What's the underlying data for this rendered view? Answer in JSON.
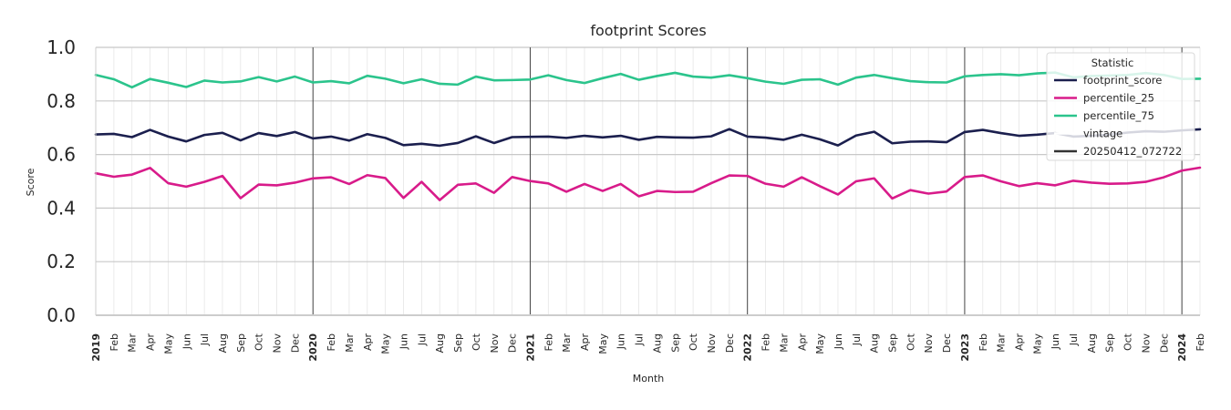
{
  "chart_data": {
    "type": "line",
    "title": "footprint Scores",
    "xlabel": "Month",
    "ylabel": "Score",
    "ylim": [
      0.0,
      1.0
    ],
    "yticks": [
      "0.0",
      "0.2",
      "0.4",
      "0.6",
      "0.8",
      "1.0"
    ],
    "x": [
      "2019-01",
      "2019-02",
      "2019-03",
      "2019-04",
      "2019-05",
      "2019-06",
      "2019-07",
      "2019-08",
      "2019-09",
      "2019-10",
      "2019-11",
      "2019-12",
      "2020-01",
      "2020-02",
      "2020-03",
      "2020-04",
      "2020-05",
      "2020-06",
      "2020-07",
      "2020-08",
      "2020-09",
      "2020-10",
      "2020-11",
      "2020-12",
      "2021-01",
      "2021-02",
      "2021-03",
      "2021-04",
      "2021-05",
      "2021-06",
      "2021-07",
      "2021-08",
      "2021-09",
      "2021-10",
      "2021-11",
      "2021-12",
      "2022-01",
      "2022-02",
      "2022-03",
      "2022-04",
      "2022-05",
      "2022-06",
      "2022-07",
      "2022-08",
      "2022-09",
      "2022-10",
      "2022-11",
      "2022-12",
      "2023-01",
      "2023-02",
      "2023-03",
      "2023-04",
      "2023-05",
      "2023-06",
      "2023-07",
      "2023-08",
      "2023-09",
      "2023-10",
      "2023-11",
      "2023-12",
      "2024-01",
      "2024-02"
    ],
    "xtick_labels": [
      "2019",
      "Feb",
      "Mar",
      "Apr",
      "May",
      "Jun",
      "Jul",
      "Aug",
      "Sep",
      "Oct",
      "Nov",
      "Dec",
      "2020",
      "Feb",
      "Mar",
      "Apr",
      "May",
      "Jun",
      "Jul",
      "Aug",
      "Sep",
      "Oct",
      "Nov",
      "Dec",
      "2021",
      "Feb",
      "Mar",
      "Apr",
      "May",
      "Jun",
      "Jul",
      "Aug",
      "Sep",
      "Oct",
      "Nov",
      "Dec",
      "2022",
      "Feb",
      "Mar",
      "Apr",
      "May",
      "Jun",
      "Jul",
      "Aug",
      "Sep",
      "Oct",
      "Nov",
      "Dec",
      "2023",
      "Feb",
      "Mar",
      "Apr",
      "May",
      "Jun",
      "Jul",
      "Aug",
      "Sep",
      "Oct",
      "Nov",
      "Dec",
      "2024",
      "Feb"
    ],
    "vintage_lines": [
      "2020-01",
      "2021-01",
      "2022-01",
      "2023-01",
      "2024-01"
    ],
    "series": [
      {
        "name": "footprint_score",
        "color": "#1b1f4e",
        "values": [
          0.675,
          0.677,
          0.665,
          0.692,
          0.667,
          0.649,
          0.673,
          0.681,
          0.653,
          0.68,
          0.669,
          0.684,
          0.66,
          0.667,
          0.652,
          0.676,
          0.662,
          0.635,
          0.64,
          0.633,
          0.643,
          0.668,
          0.643,
          0.665,
          0.666,
          0.667,
          0.662,
          0.67,
          0.664,
          0.67,
          0.655,
          0.666,
          0.664,
          0.663,
          0.668,
          0.695,
          0.667,
          0.663,
          0.655,
          0.674,
          0.657,
          0.634,
          0.671,
          0.685,
          0.642,
          0.648,
          0.649,
          0.646,
          0.684,
          0.692,
          0.68,
          0.67,
          0.674,
          0.68,
          0.667,
          0.67,
          0.674,
          0.682,
          0.687,
          0.685,
          0.69,
          0.694
        ]
      },
      {
        "name": "percentile_25",
        "color": "#d81b8a",
        "values": [
          0.53,
          0.517,
          0.525,
          0.55,
          0.493,
          0.48,
          0.498,
          0.52,
          0.437,
          0.488,
          0.485,
          0.495,
          0.511,
          0.515,
          0.49,
          0.523,
          0.512,
          0.438,
          0.498,
          0.43,
          0.487,
          0.492,
          0.457,
          0.516,
          0.501,
          0.492,
          0.461,
          0.49,
          0.464,
          0.49,
          0.444,
          0.464,
          0.46,
          0.461,
          0.493,
          0.522,
          0.52,
          0.491,
          0.48,
          0.515,
          0.482,
          0.451,
          0.5,
          0.511,
          0.436,
          0.467,
          0.454,
          0.462,
          0.516,
          0.522,
          0.5,
          0.482,
          0.493,
          0.485,
          0.502,
          0.495,
          0.491,
          0.492,
          0.498,
          0.515,
          0.54,
          0.551
        ]
      },
      {
        "name": "percentile_75",
        "color": "#2bc48c",
        "values": [
          0.897,
          0.881,
          0.851,
          0.882,
          0.868,
          0.852,
          0.876,
          0.869,
          0.873,
          0.889,
          0.873,
          0.891,
          0.869,
          0.874,
          0.866,
          0.894,
          0.883,
          0.866,
          0.881,
          0.864,
          0.861,
          0.891,
          0.877,
          0.878,
          0.88,
          0.896,
          0.878,
          0.867,
          0.885,
          0.901,
          0.879,
          0.893,
          0.905,
          0.891,
          0.887,
          0.896,
          0.885,
          0.872,
          0.864,
          0.879,
          0.881,
          0.861,
          0.887,
          0.897,
          0.885,
          0.874,
          0.87,
          0.869,
          0.892,
          0.897,
          0.9,
          0.896,
          0.903,
          0.906,
          0.888,
          0.893,
          0.895,
          0.897,
          0.904,
          0.897,
          0.882,
          0.883
        ]
      }
    ],
    "legend": {
      "title": "Statistic",
      "position": "top-right",
      "entries": [
        {
          "label": "footprint_score",
          "color": "#1b1f4e"
        },
        {
          "label": "percentile_25",
          "color": "#d81b8a"
        },
        {
          "label": "percentile_75",
          "color": "#2bc48c"
        },
        {
          "label": "vintage",
          "color": "#ffffff"
        },
        {
          "label": "20250412_072722",
          "color": "#333333"
        }
      ]
    },
    "grid": true
  }
}
